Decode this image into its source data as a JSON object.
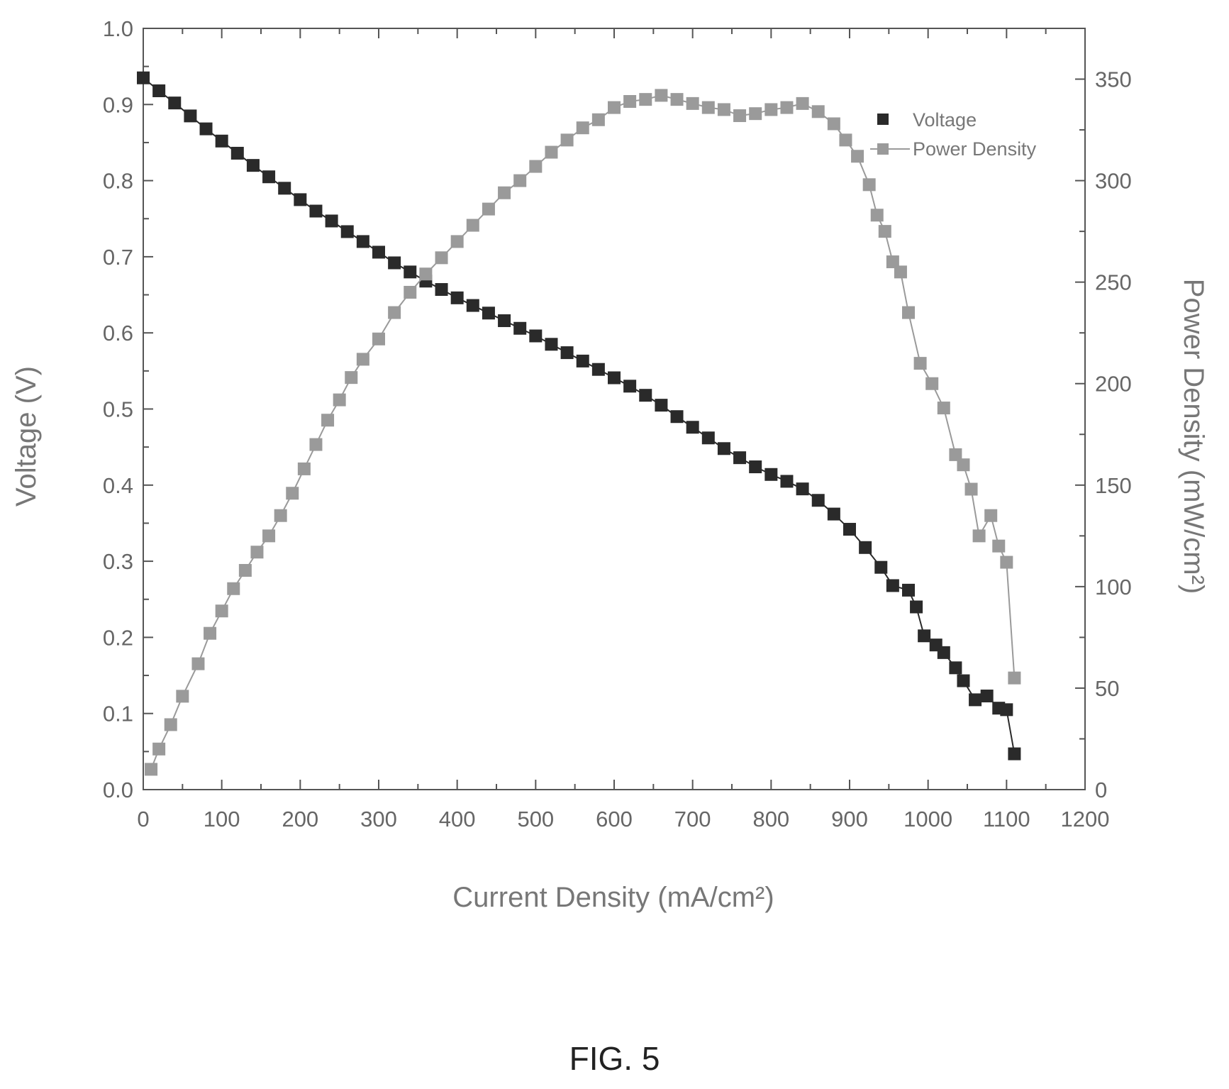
{
  "figure_caption": "FIG. 5",
  "chart_data": {
    "type": "scatter",
    "xlabel": "Current Density (mA/cm²)",
    "ylabel": "Voltage (V)",
    "y2label": "Power Density (mW/cm²)",
    "xlim": [
      0,
      1200
    ],
    "ylim": [
      0,
      1.0
    ],
    "y2lim": [
      0,
      375
    ],
    "x_ticks": [
      "0",
      "100",
      "200",
      "300",
      "400",
      "500",
      "600",
      "700",
      "800",
      "900",
      "1000",
      "1100",
      "1200"
    ],
    "y_ticks": [
      "0.0",
      "0.1",
      "0.2",
      "0.3",
      "0.4",
      "0.5",
      "0.6",
      "0.7",
      "0.8",
      "0.9",
      "1.0"
    ],
    "y2_ticks": [
      "0",
      "50",
      "100",
      "150",
      "200",
      "250",
      "300",
      "350"
    ],
    "grid": false,
    "legend_position": "top-right",
    "colors": {
      "voltage": "#2a2a2a",
      "power": "#9a9a9a",
      "axis": "#555555"
    },
    "series": [
      {
        "name": "Voltage",
        "axis": "left",
        "x": [
          0,
          20,
          40,
          60,
          80,
          100,
          120,
          140,
          160,
          180,
          200,
          220,
          240,
          260,
          280,
          300,
          320,
          340,
          360,
          380,
          400,
          420,
          440,
          460,
          480,
          500,
          520,
          540,
          560,
          580,
          600,
          620,
          640,
          660,
          680,
          700,
          720,
          740,
          760,
          780,
          800,
          820,
          840,
          860,
          880,
          900,
          920,
          940,
          955,
          975,
          985,
          995,
          1010,
          1020,
          1035,
          1045,
          1060,
          1075,
          1090,
          1100,
          1110
        ],
        "y": [
          0.935,
          0.918,
          0.902,
          0.885,
          0.868,
          0.852,
          0.836,
          0.82,
          0.805,
          0.79,
          0.775,
          0.76,
          0.747,
          0.733,
          0.72,
          0.706,
          0.692,
          0.68,
          0.668,
          0.657,
          0.646,
          0.636,
          0.626,
          0.616,
          0.606,
          0.596,
          0.585,
          0.574,
          0.563,
          0.552,
          0.541,
          0.53,
          0.518,
          0.505,
          0.49,
          0.476,
          0.462,
          0.448,
          0.436,
          0.424,
          0.414,
          0.405,
          0.395,
          0.38,
          0.362,
          0.342,
          0.318,
          0.292,
          0.268,
          0.262,
          0.24,
          0.202,
          0.19,
          0.18,
          0.16,
          0.143,
          0.118,
          0.123,
          0.107,
          0.105,
          0.047
        ]
      },
      {
        "name": "Power Density",
        "axis": "right",
        "x": [
          10,
          20,
          35,
          50,
          70,
          85,
          100,
          115,
          130,
          145,
          160,
          175,
          190,
          205,
          220,
          235,
          250,
          265,
          280,
          300,
          320,
          340,
          360,
          380,
          400,
          420,
          440,
          460,
          480,
          500,
          520,
          540,
          560,
          580,
          600,
          620,
          640,
          660,
          680,
          700,
          720,
          740,
          760,
          780,
          800,
          820,
          840,
          860,
          880,
          895,
          910,
          925,
          935,
          945,
          955,
          965,
          975,
          990,
          1005,
          1020,
          1035,
          1045,
          1055,
          1065,
          1080,
          1090,
          1100,
          1110
        ],
        "y": [
          10,
          20,
          32,
          46,
          62,
          77,
          88,
          99,
          108,
          117,
          125,
          135,
          146,
          158,
          170,
          182,
          192,
          203,
          212,
          222,
          235,
          245,
          254,
          262,
          270,
          278,
          286,
          294,
          300,
          307,
          314,
          320,
          326,
          330,
          336,
          339,
          340,
          342,
          340,
          338,
          336,
          335,
          332,
          333,
          335,
          336,
          338,
          334,
          328,
          320,
          312,
          298,
          283,
          275,
          260,
          255,
          235,
          210,
          200,
          188,
          165,
          160,
          148,
          125,
          135,
          120,
          112,
          55
        ]
      }
    ]
  }
}
